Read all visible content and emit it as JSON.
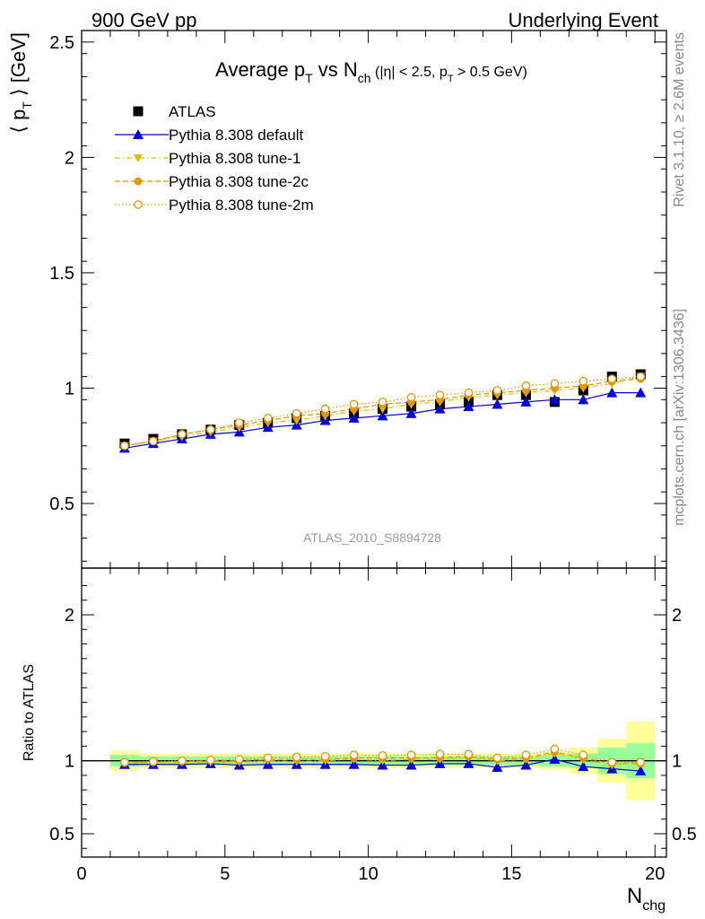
{
  "header": {
    "left": "900 GeV pp",
    "right": "Underlying Event"
  },
  "side_text": {
    "upper": "Rivet 3.1.10, ≥ 2.6M events",
    "lower": "mcplots.cern.ch [arXiv:1306.3436]"
  },
  "watermark": "ATLAS_2010_S8894728",
  "colors": {
    "atlas": "#000000",
    "default": "#0000dd",
    "tune1": "#e8b800",
    "tune2c": "#e69500",
    "tune2m": "#e69500",
    "band_inner": "#99ff99",
    "band_outer": "#ffff99"
  },
  "chart_data": [
    {
      "type": "scatter",
      "panel": "main",
      "title": {
        "main": "Average p",
        "sub1": "T",
        "mid": " vs N",
        "sub2": "ch",
        "cond_a": " (|η| < 2.5, p",
        "cond_sub": "T",
        "cond_b": " > 0.5 GeV)"
      },
      "ylabel": {
        "a": "⟨ p",
        "sub": "T",
        "b": " ⟩ [GeV]"
      },
      "xlim": [
        0,
        20.4
      ],
      "ylim": [
        0.22,
        2.55
      ],
      "yticks": [
        0.5,
        1,
        1.5,
        2,
        2.5
      ],
      "ytick_labels": [
        "0.5",
        "1",
        "1.5",
        "2",
        "2.5"
      ],
      "legend_position": "top-left",
      "x": [
        1.5,
        2.5,
        3.5,
        4.5,
        5.5,
        6.5,
        7.5,
        8.5,
        9.5,
        10.5,
        11.5,
        12.5,
        13.5,
        14.5,
        15.5,
        16.5,
        17.5,
        18.5,
        19.5
      ],
      "series": [
        {
          "key": "atlas",
          "name": "ATLAS",
          "marker": "square",
          "values": [
            0.76,
            0.78,
            0.8,
            0.82,
            0.84,
            0.85,
            0.87,
            0.88,
            0.89,
            0.91,
            0.92,
            0.93,
            0.94,
            0.97,
            0.97,
            0.94,
            0.99,
            1.05,
            1.06
          ]
        },
        {
          "key": "default",
          "name": "Pythia 8.308 default",
          "marker": "triangle-up",
          "line": "solid",
          "values": [
            0.74,
            0.76,
            0.78,
            0.8,
            0.81,
            0.83,
            0.84,
            0.86,
            0.87,
            0.88,
            0.89,
            0.91,
            0.92,
            0.93,
            0.94,
            0.95,
            0.95,
            0.98,
            0.98
          ]
        },
        {
          "key": "tune1",
          "name": "Pythia 8.308 tune-1",
          "marker": "triangle-down",
          "line": "dashdot",
          "values": [
            0.75,
            0.77,
            0.79,
            0.81,
            0.83,
            0.85,
            0.86,
            0.88,
            0.9,
            0.91,
            0.93,
            0.94,
            0.96,
            0.97,
            0.98,
            0.99,
            1.0,
            1.02,
            1.05
          ]
        },
        {
          "key": "tune2c",
          "name": "Pythia 8.308 tune-2c",
          "marker": "circle",
          "line": "dashed",
          "values": [
            0.75,
            0.77,
            0.8,
            0.82,
            0.84,
            0.86,
            0.88,
            0.89,
            0.91,
            0.93,
            0.94,
            0.95,
            0.97,
            0.98,
            0.99,
            1.0,
            1.01,
            1.03,
            1.04
          ]
        },
        {
          "key": "tune2m",
          "name": "Pythia 8.308 tune-2m",
          "marker": "open-circle",
          "line": "dotted",
          "values": [
            0.75,
            0.77,
            0.8,
            0.82,
            0.85,
            0.87,
            0.89,
            0.91,
            0.93,
            0.94,
            0.96,
            0.97,
            0.98,
            0.99,
            1.01,
            1.02,
            1.03,
            1.04,
            1.05
          ]
        }
      ]
    },
    {
      "type": "scatter",
      "panel": "ratio",
      "ylabel": "Ratio to ATLAS",
      "xlabel": {
        "a": "N",
        "sub": "chg"
      },
      "xlim": [
        0,
        20.4
      ],
      "ylim": [
        0.34,
        2.32
      ],
      "xticks": [
        0,
        5,
        10,
        15,
        20
      ],
      "xtick_labels": [
        "0",
        "5",
        "10",
        "15",
        "20"
      ],
      "yticks": [
        0.5,
        1,
        2
      ],
      "ytick_labels": [
        "0.5",
        "1",
        "2"
      ],
      "bin_edges": [
        1,
        2,
        3,
        4,
        5,
        6,
        7,
        8,
        9,
        10,
        11,
        12,
        13,
        14,
        15,
        16,
        17,
        18,
        19,
        20
      ],
      "band_inner": [
        0.04,
        0.03,
        0.03,
        0.03,
        0.03,
        0.03,
        0.03,
        0.03,
        0.03,
        0.03,
        0.03,
        0.03,
        0.03,
        0.03,
        0.03,
        0.04,
        0.05,
        0.09,
        0.12
      ],
      "band_outer": [
        0.07,
        0.05,
        0.05,
        0.05,
        0.05,
        0.05,
        0.05,
        0.05,
        0.05,
        0.05,
        0.05,
        0.05,
        0.05,
        0.05,
        0.05,
        0.06,
        0.09,
        0.15,
        0.27
      ],
      "x": [
        1.5,
        2.5,
        3.5,
        4.5,
        5.5,
        6.5,
        7.5,
        8.5,
        9.5,
        10.5,
        11.5,
        12.5,
        13.5,
        14.5,
        15.5,
        16.5,
        17.5,
        18.5,
        19.5
      ],
      "series": [
        {
          "key": "default",
          "values": [
            0.975,
            0.975,
            0.975,
            0.98,
            0.97,
            0.975,
            0.975,
            0.975,
            0.975,
            0.97,
            0.97,
            0.98,
            0.98,
            0.955,
            0.97,
            1.01,
            0.96,
            0.945,
            0.93
          ]
        },
        {
          "key": "tune1",
          "values": [
            0.985,
            0.99,
            0.99,
            0.99,
            0.99,
            1.0,
            0.995,
            1.0,
            1.01,
            1.0,
            1.01,
            1.01,
            1.02,
            1.0,
            1.01,
            1.05,
            1.01,
            0.97,
            0.99
          ]
        },
        {
          "key": "tune2c",
          "values": [
            0.985,
            0.99,
            0.995,
            1.0,
            1.0,
            1.01,
            1.01,
            1.01,
            1.02,
            1.02,
            1.02,
            1.02,
            1.03,
            1.01,
            1.02,
            1.06,
            1.02,
            0.98,
            0.98
          ]
        },
        {
          "key": "tune2m",
          "values": [
            0.99,
            0.995,
            1.0,
            1.005,
            1.01,
            1.02,
            1.025,
            1.03,
            1.04,
            1.035,
            1.04,
            1.045,
            1.045,
            1.02,
            1.04,
            1.08,
            1.04,
            0.99,
            0.99
          ]
        }
      ]
    }
  ]
}
